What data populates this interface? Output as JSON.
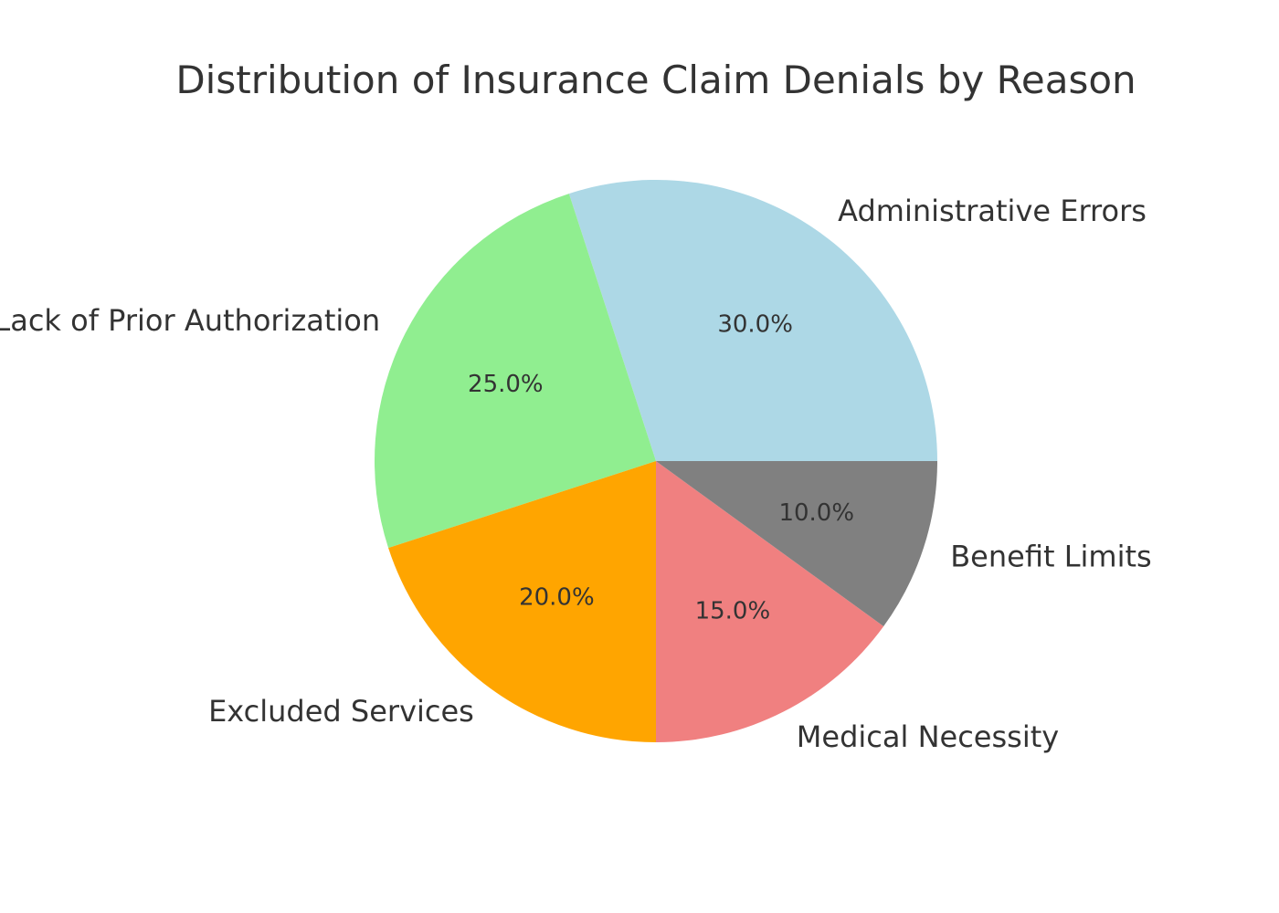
{
  "chart_data": {
    "type": "pie",
    "title": "Distribution of Insurance Claim Denials by Reason",
    "categories": [
      "Administrative Errors",
      "Lack of Prior Authorization",
      "Excluded Services",
      "Medical Necessity",
      "Benefit Limits"
    ],
    "values": [
      30.0,
      25.0,
      20.0,
      15.0,
      10.0
    ],
    "percent_labels": [
      "30.0%",
      "25.0%",
      "20.0%",
      "15.0%",
      "10.0%"
    ],
    "colors": [
      "#add8e6",
      "#90ee90",
      "#ffa500",
      "#f08080",
      "#808080"
    ],
    "start_angle_deg": 0,
    "direction": "counterclockwise",
    "legend": "none"
  }
}
